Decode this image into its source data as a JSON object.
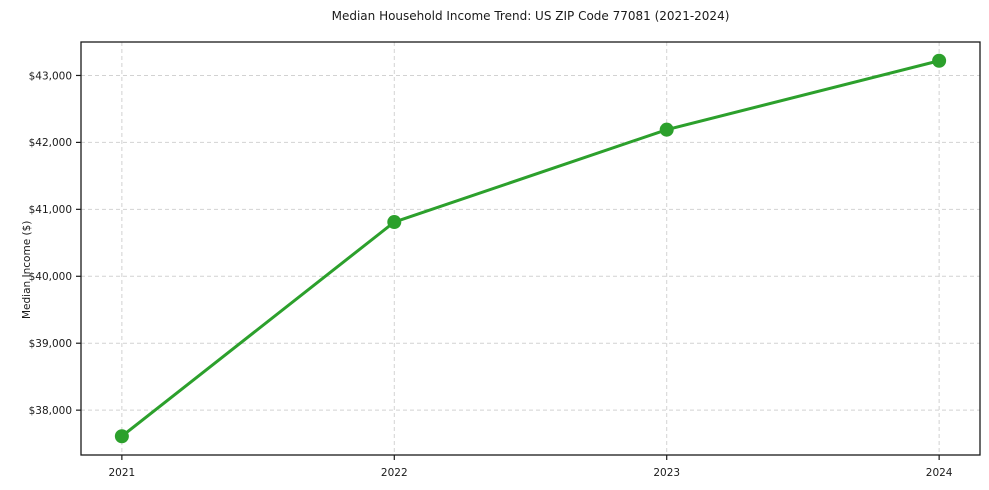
{
  "chart_data": {
    "type": "line",
    "title": "Median Household Income Trend: US ZIP Code 77081 (2021-2024)",
    "xlabel": "",
    "ylabel": "Median Income ($)",
    "x": [
      2021,
      2022,
      2023,
      2024
    ],
    "x_tick_labels": [
      "2021",
      "2022",
      "2023",
      "2024"
    ],
    "series": [
      {
        "name": "Median Household Income",
        "values": [
          37610,
          40810,
          42190,
          43220
        ]
      }
    ],
    "y_ticks": [
      38000,
      39000,
      40000,
      41000,
      42000,
      43000
    ],
    "y_tick_labels": [
      "$38,000",
      "$39,000",
      "$40,000",
      "$41,000",
      "$42,000",
      "$43,000"
    ],
    "xlim": [
      2020.85,
      2024.15
    ],
    "ylim": [
      37330,
      43500
    ],
    "grid": true,
    "grid_style": "dashed",
    "legend_position": "none",
    "line_color": "#2ca02c",
    "marker": "circle",
    "grid_color": "#d2d2d2",
    "spine_color": "#1a1a1a",
    "background_color": "#ffffff"
  }
}
